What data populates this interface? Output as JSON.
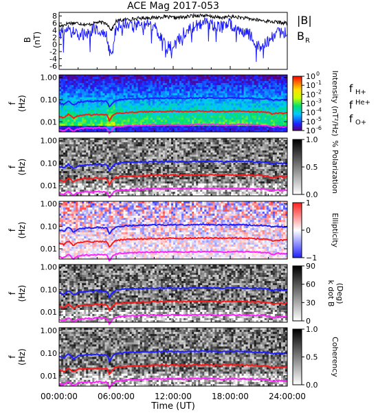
{
  "figure": {
    "title": "ACE Mag 2017-053",
    "xlabel": "Time (UT)",
    "x_ticks": [
      "00:00:00",
      "06:00:00",
      "12:00:00",
      "18:00:00",
      "24:00:00"
    ]
  },
  "colors": {
    "B_total": "#000000",
    "B_R": "#1a1aff",
    "f_Hplus": "#1f1fff",
    "f_Heplus": "#ff1a1a",
    "f_Oplus": "#ff22ff"
  },
  "chart_data": [
    {
      "type": "line",
      "panel": "B",
      "ylabel": "B",
      "yunit": "(nT)",
      "ylim": [
        -7,
        9
      ],
      "y_ticks": [
        "8",
        "6",
        "4",
        "2",
        "0",
        "-2",
        "-4",
        "-6"
      ],
      "x_hours": [
        0,
        1,
        2,
        3,
        4,
        5,
        5.5,
        6,
        7,
        8,
        9,
        10,
        11,
        12,
        13,
        14,
        15,
        16,
        17,
        18,
        19,
        20,
        21,
        22,
        23,
        24
      ],
      "series": [
        {
          "name": "|B|",
          "color_key": "B_total",
          "values": [
            5.0,
            6.0,
            6.0,
            5.5,
            6.2,
            6.0,
            4.0,
            6.5,
            7.0,
            7.2,
            7.5,
            7.5,
            7.8,
            7.5,
            7.6,
            8.0,
            8.2,
            7.8,
            7.5,
            7.8,
            7.6,
            7.2,
            6.8,
            6.5,
            6.2,
            6.0
          ]
        },
        {
          "name": "B_R",
          "color_key": "B_R",
          "values": [
            3.0,
            4.0,
            2.5,
            3.5,
            4.5,
            2.0,
            -4.0,
            5.0,
            5.5,
            5.0,
            6.0,
            5.0,
            0.5,
            -1.0,
            3.0,
            5.0,
            6.0,
            5.5,
            5.0,
            6.0,
            4.5,
            3.0,
            -0.5,
            1.0,
            3.0,
            4.0
          ]
        }
      ],
      "legend": [
        "|B|",
        "B"
      ],
      "legend_sub": [
        "",
        "R"
      ]
    },
    {
      "type": "heatmap",
      "panel": "intensity",
      "ylabel": "f",
      "yunit": "(Hz)",
      "y_ticks": [
        "1.00",
        "0.10",
        "0.01"
      ],
      "colorbar_label": "Intensity (nT²/Hz)",
      "colorbar_ticks": [
        "10",
        "10",
        "10",
        "10",
        "10",
        "10",
        "10"
      ],
      "colorbar_exps": [
        "0",
        "-1",
        "-2",
        "-3",
        "-4",
        "-5",
        "-6"
      ],
      "legend": [
        "f",
        "f",
        "f"
      ],
      "legend_sub": [
        "H+",
        "He+",
        "O+"
      ]
    },
    {
      "type": "heatmap",
      "panel": "polarization",
      "ylabel": "f",
      "yunit": "(Hz)",
      "y_ticks": [
        "1.00",
        "0.10",
        "0.01"
      ],
      "colorbar_label": "% Polarization",
      "colorbar_ticks": [
        "1.0",
        "0.5",
        "0.0"
      ]
    },
    {
      "type": "heatmap",
      "panel": "ellipticity",
      "ylabel": "f",
      "yunit": "(Hz)",
      "y_ticks": [
        "1.00",
        "0.10",
        "0.01"
      ],
      "colorbar_label": "Ellipticity",
      "colorbar_ticks": [
        "1",
        "0",
        "−1"
      ]
    },
    {
      "type": "heatmap",
      "panel": "kdotb",
      "ylabel": "f",
      "yunit": "(Hz)",
      "y_ticks": [
        "1.00",
        "0.10",
        "0.01"
      ],
      "colorbar_label": "k dot B",
      "colorbar_label2": "(Deg)",
      "colorbar_ticks": [
        "90",
        "60",
        "30",
        "0"
      ]
    },
    {
      "type": "heatmap",
      "panel": "coherency",
      "ylabel": "f",
      "yunit": "(Hz)",
      "y_ticks": [
        "1.00",
        "0.10",
        "0.01"
      ],
      "colorbar_label": "Coherency",
      "colorbar_ticks": [
        "1.0",
        "0.5",
        "0.0"
      ]
    }
  ],
  "gyro": {
    "x_hours": [
      0,
      0.5,
      1,
      1.5,
      2,
      2.5,
      3,
      3.5,
      4,
      4.5,
      5,
      5.3,
      5.6,
      6,
      6.5,
      7,
      8,
      9,
      10,
      11,
      12,
      13,
      14,
      15,
      16,
      17,
      18,
      19,
      20,
      21,
      22,
      22.5,
      23,
      23.5,
      24
    ],
    "f_Hplus": [
      0.07,
      0.06,
      0.09,
      0.055,
      0.075,
      0.08,
      0.085,
      0.08,
      0.09,
      0.085,
      0.085,
      0.045,
      0.07,
      0.095,
      0.1,
      0.105,
      0.11,
      0.112,
      0.115,
      0.115,
      0.118,
      0.115,
      0.118,
      0.12,
      0.12,
      0.115,
      0.118,
      0.12,
      0.115,
      0.11,
      0.105,
      0.09,
      0.1,
      0.095,
      0.1
    ],
    "f_Heplus": [
      0.018,
      0.015,
      0.022,
      0.014,
      0.019,
      0.02,
      0.021,
      0.02,
      0.022,
      0.021,
      0.021,
      0.011,
      0.018,
      0.024,
      0.025,
      0.026,
      0.027,
      0.028,
      0.029,
      0.029,
      0.03,
      0.029,
      0.03,
      0.03,
      0.03,
      0.029,
      0.03,
      0.03,
      0.029,
      0.028,
      0.026,
      0.022,
      0.025,
      0.024,
      0.025
    ],
    "f_Oplus": [
      0.0045,
      0.004,
      0.0055,
      0.0035,
      0.0048,
      0.005,
      0.0053,
      0.005,
      0.0055,
      0.0053,
      0.0053,
      0.0028,
      0.0045,
      0.006,
      0.0063,
      0.0065,
      0.0068,
      0.007,
      0.0072,
      0.0072,
      0.0074,
      0.0072,
      0.0074,
      0.0075,
      0.0075,
      0.0072,
      0.0074,
      0.0075,
      0.0072,
      0.007,
      0.0066,
      0.0056,
      0.0063,
      0.006,
      0.0063
    ]
  }
}
